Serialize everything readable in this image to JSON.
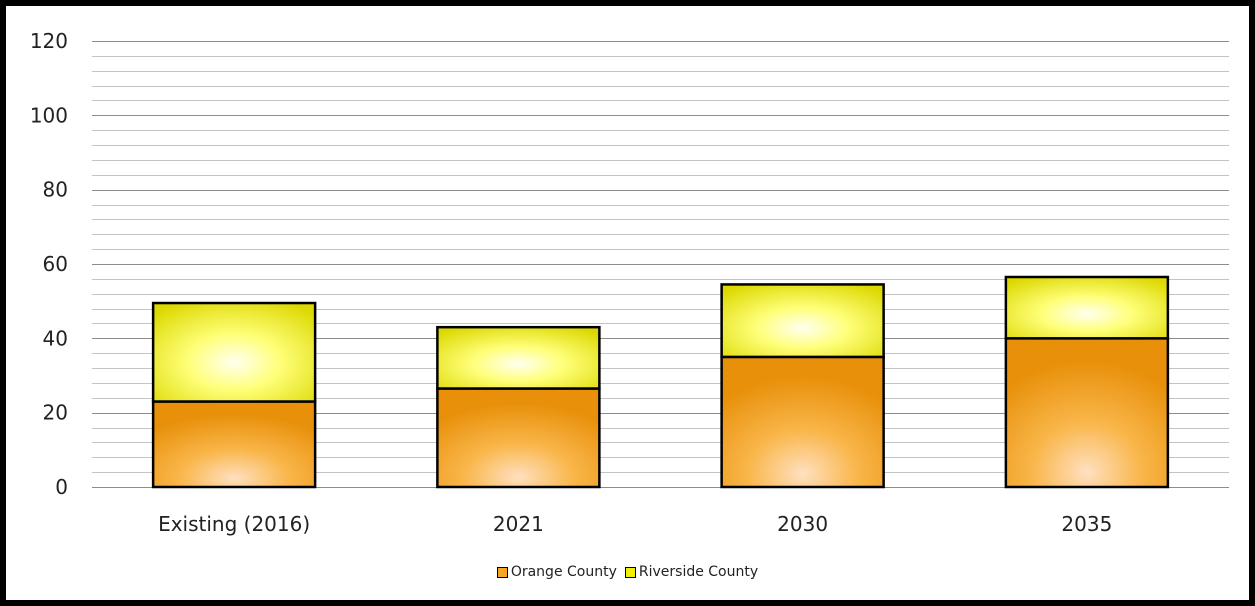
{
  "chart_data": {
    "type": "bar",
    "stacked": true,
    "categories": [
      "Existing (2016)",
      "2021",
      "2030",
      "2035"
    ],
    "series": [
      {
        "name": "Orange County",
        "values": [
          23,
          26.5,
          35,
          40
        ],
        "color": "#F5A623"
      },
      {
        "name": "Riverside County",
        "values": [
          26.5,
          16.5,
          19.5,
          16.5
        ],
        "color": "#F2F000"
      }
    ],
    "ylim": [
      0,
      120
    ],
    "yticks": [
      0,
      20,
      40,
      60,
      80,
      100,
      120
    ],
    "minor_gridlines": true,
    "legend_position": "bottom"
  }
}
